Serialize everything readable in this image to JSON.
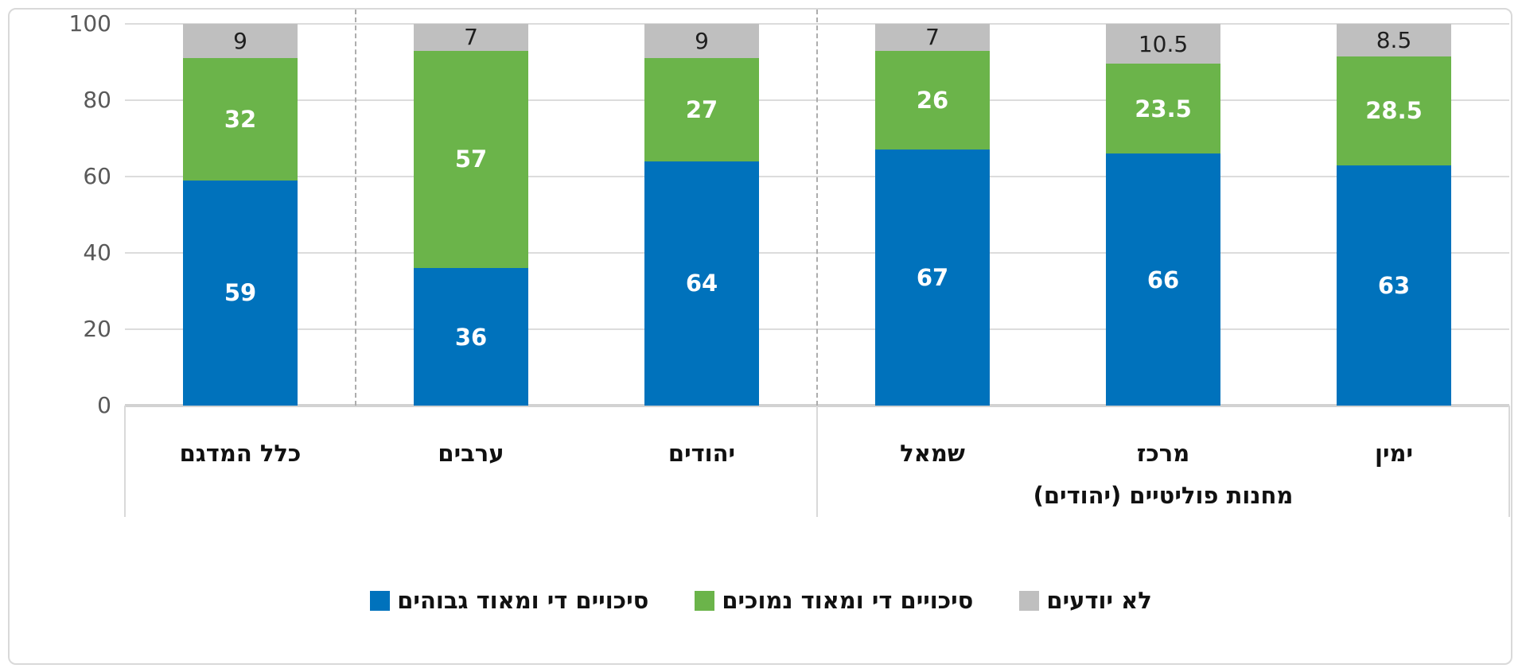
{
  "chart_data": {
    "type": "bar",
    "stacked": true,
    "title": "",
    "categories": [
      "כלל המדגם",
      "ערבים",
      "יהודים",
      "שמאל",
      "מרכז",
      "ימין"
    ],
    "categories_display_order": "left-to-right",
    "series": [
      {
        "name": "סיכויים די ומאוד גבוהים",
        "color": "#0072BC",
        "label_color": "#FFFFFF",
        "label_bold": true,
        "values": [
          59,
          36,
          64,
          67,
          66,
          63
        ]
      },
      {
        "name": "סיכויים די ומאוד נמוכים",
        "color": "#6BB44A",
        "label_color": "#FFFFFF",
        "label_bold": true,
        "values": [
          32,
          57,
          27,
          26,
          23.5,
          28.5
        ]
      },
      {
        "name": "לא יודעים",
        "color": "#BFBFBF",
        "label_color": "#1f1f1f",
        "label_bold": false,
        "values": [
          9,
          7,
          9,
          7,
          10.5,
          8.5
        ]
      }
    ],
    "ylim": [
      0,
      100
    ],
    "y_ticks": [
      0,
      20,
      40,
      60,
      80,
      100
    ],
    "grid": true,
    "separators_after_category_index": [
      0,
      2
    ],
    "group_label": {
      "text": "מחנות פוליטיים (יהודים)",
      "span_categories": [
        "שמאל",
        "מרכז",
        "ימין"
      ]
    },
    "legend_position": "bottom-center",
    "axis_label_color": "#595959",
    "gridline_color": "#DCDCDC"
  }
}
